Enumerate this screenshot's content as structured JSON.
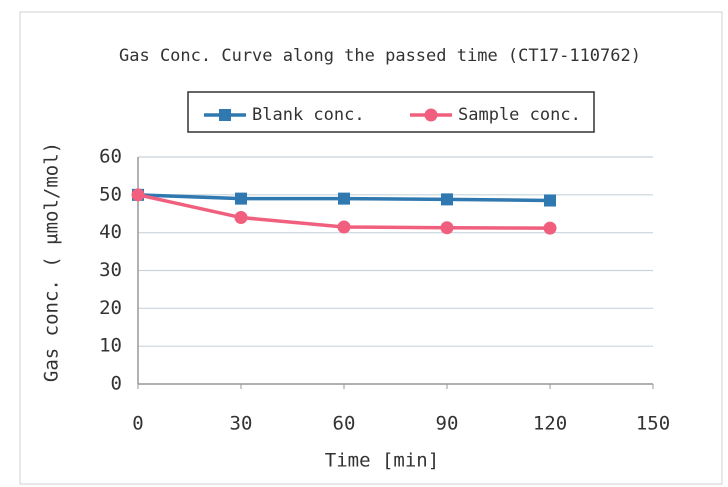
{
  "chart_data": {
    "type": "line",
    "title": "Gas Conc. Curve along the passed time (CT17-110762)",
    "x_label": "Time [min]",
    "y_label": "Gas conc. ( μmol/mol)",
    "x": [
      0,
      30,
      60,
      90,
      120
    ],
    "series": [
      {
        "name": "Blank conc.",
        "color": "#2f78b0",
        "marker": "square",
        "values": [
          50,
          49,
          49,
          48.8,
          48.5
        ]
      },
      {
        "name": "Sample conc.",
        "color": "#f0607e",
        "marker": "circle",
        "values": [
          50,
          44,
          41.5,
          41.3,
          41.2
        ]
      }
    ],
    "xlim": [
      0,
      150
    ],
    "xticks": [
      0,
      30,
      60,
      90,
      120,
      150
    ],
    "ylim": [
      0,
      60
    ],
    "yticks": [
      0,
      10,
      20,
      30,
      40,
      50,
      60
    ],
    "grid": true,
    "legend": "top"
  }
}
